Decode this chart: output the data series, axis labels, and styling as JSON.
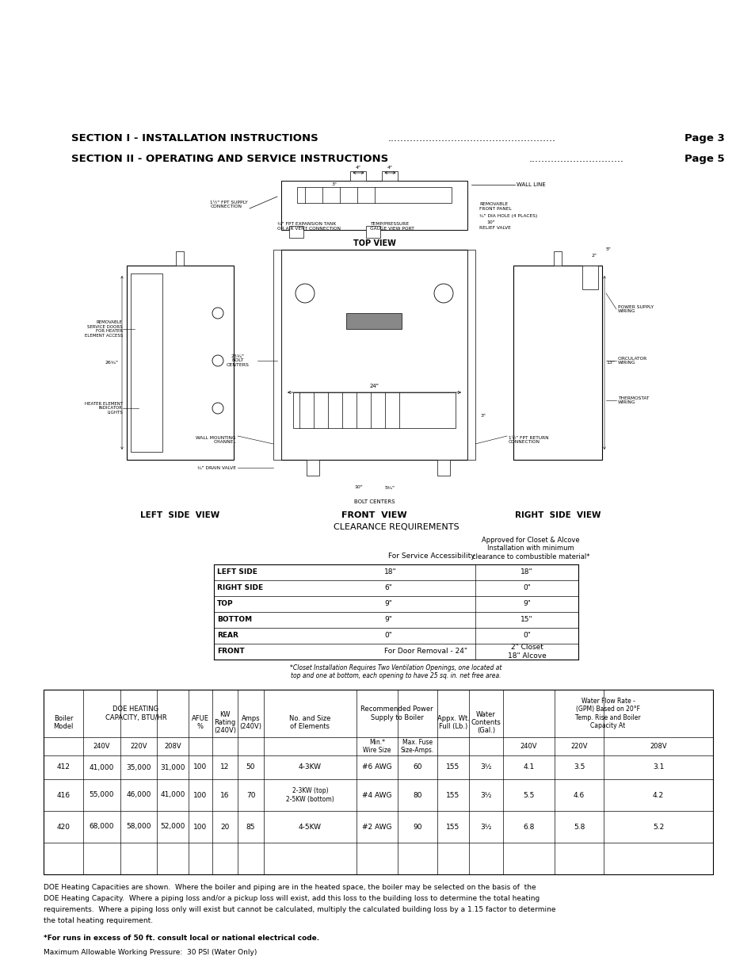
{
  "background_color": "#ffffff",
  "page_width": 9.54,
  "page_height": 12.35,
  "section1_text": "SECTION I - INSTALLATION INSTRUCTIONS",
  "section1_page": "Page 3",
  "section2_text": "SECTION II - OPERATING AND SERVICE INSTRUCTIONS",
  "section2_page": "Page 5",
  "clearance_title": "CLEARANCE REQUIREMENTS",
  "clearance_col2_header": "For Service Accessibility",
  "clearance_col3_header": "Approved for Closet & Alcove\nInstallation with minimum\nclearance to combustible material*",
  "clearance_rows": [
    [
      "LEFT SIDE",
      "18\"",
      "18\""
    ],
    [
      "RIGHT SIDE",
      "6\"",
      "0\""
    ],
    [
      "TOP",
      "9\"",
      "9\""
    ],
    [
      "BOTTOM",
      "9\"",
      "15\""
    ],
    [
      "REAR",
      "0\"",
      "0\""
    ],
    [
      "FRONT",
      "For Door Removal - 24\"",
      "2\" Closet\n18\" Alcove"
    ]
  ],
  "closet_note": "*Closet Installation Requires Two Ventilation Openings, one located at\ntop and one at bottom, each opening to have 25 sq. in. net free area.",
  "spec_rows": [
    [
      "412",
      "41,000",
      "35,000",
      "31,000",
      "100",
      "12",
      "50",
      "4-3KW",
      "#6 AWG",
      "60",
      "155",
      "3½",
      "4.1",
      "3.5",
      "3.1"
    ],
    [
      "416",
      "55,000",
      "46,000",
      "41,000",
      "100",
      "16",
      "70",
      "2-3KW (top)\n2-5KW (bottom)",
      "#4 AWG",
      "80",
      "155",
      "3½",
      "5.5",
      "4.6",
      "4.2"
    ],
    [
      "420",
      "68,000",
      "58,000",
      "52,000",
      "100",
      "20",
      "85",
      "4-5KW",
      "#2 AWG",
      "90",
      "155",
      "3½",
      "6.8",
      "5.8",
      "5.2"
    ]
  ],
  "footnote1_lines": [
    "DOE Heating Capacities are shown.  Where the boiler and piping are in the heated space, the boiler may be selected on the basis of  the",
    "DOE Heating Capacity.  Where a piping loss and/or a pickup loss will exist, add this loss to the building loss to determine the total heating",
    "requirements.  Where a piping loss only will exist but cannot be calculated, multiply the calculated building loss by a 1.15 factor to determine",
    "the total heating requirement."
  ],
  "footnote2": "*For runs in excess of 50 ft. consult local or national electrical code.",
  "footnote3": "Maximum Allowable Working Pressure:  30 PSI (Water Only)",
  "left_side_label": "LEFT  SIDE  VIEW",
  "front_view_label": "FRONT  VIEW",
  "right_side_label": "RIGHT  SIDE  VIEW"
}
